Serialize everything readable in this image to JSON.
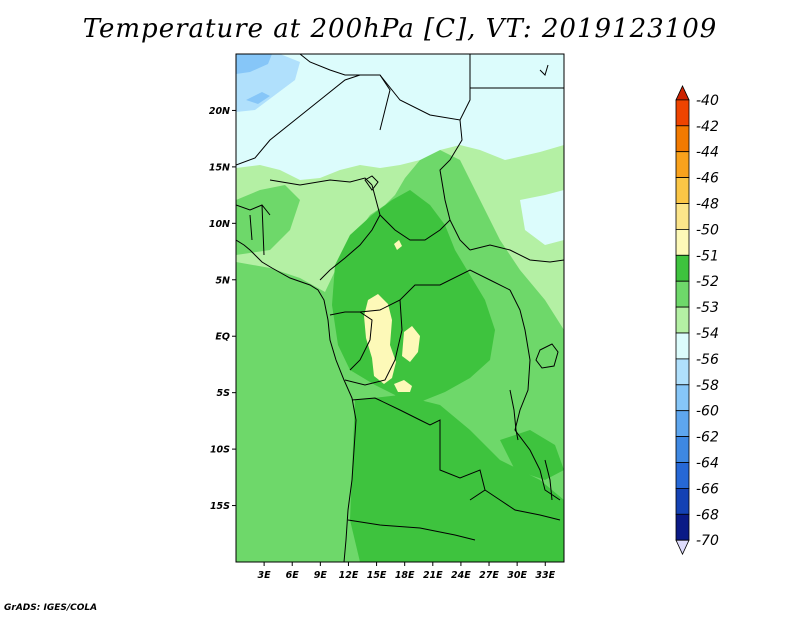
{
  "title": "Temperature at 200hPa [C], VT: 2019123109",
  "credit": "GrADS: IGES/COLA",
  "map": {
    "lon_range": [
      0,
      35
    ],
    "lat_range": [
      -20,
      25
    ],
    "lat_ticks": [
      "20N",
      "15N",
      "10N",
      "5N",
      "EQ",
      "5S",
      "10S",
      "15S"
    ],
    "lat_tick_values": [
      20,
      15,
      10,
      5,
      0,
      -5,
      -10,
      -15
    ],
    "lon_ticks": [
      "3E",
      "6E",
      "9E",
      "12E",
      "15E",
      "18E",
      "21E",
      "24E",
      "27E",
      "30E",
      "33E"
    ],
    "lon_tick_values": [
      3,
      6,
      9,
      12,
      15,
      18,
      21,
      24,
      27,
      30,
      33
    ]
  },
  "colorbar": {
    "labels": [
      "-40",
      "-42",
      "-44",
      "-46",
      "-48",
      "-50",
      "-51",
      "-52",
      "-53",
      "-54",
      "-56",
      "-58",
      "-60",
      "-62",
      "-64",
      "-66",
      "-68",
      "-70"
    ],
    "colors": [
      "#cc2200",
      "#ee4400",
      "#f27a00",
      "#f9a21c",
      "#fbc646",
      "#fce58a",
      "#fdf9b8",
      "#3ec33e",
      "#6ed86a",
      "#b4f0a4",
      "#dcfcfc",
      "#b0e0fc",
      "#86c6f8",
      "#5ea6ee",
      "#3e88e2",
      "#2668d6",
      "#1442b4",
      "#0a1a86",
      "#dedcfc"
    ]
  },
  "field_colors": {
    "c_m50": "#fdf9b8",
    "c_m51": "#3ec33e",
    "c_m52": "#6ed86a",
    "c_m53": "#b4f0a4",
    "c_m54": "#dcfcfc",
    "c_m56": "#b0e0fc",
    "c_m58": "#86c6f8"
  }
}
